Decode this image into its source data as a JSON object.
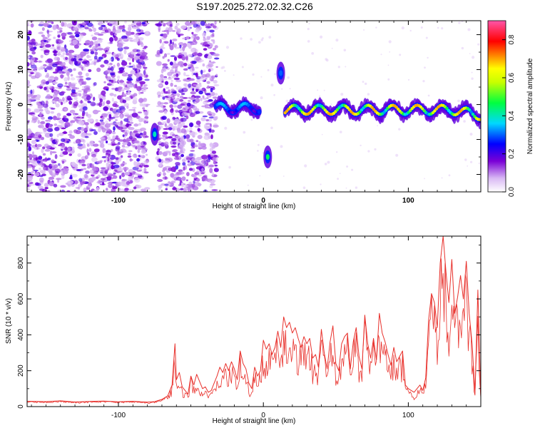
{
  "figure": {
    "title": "S197.2025.272.02.32.C26"
  },
  "chart_data": [
    {
      "type": "heatmap",
      "name": "spectrogram",
      "xlabel": "Height of straight line (km)",
      "ylabel": "Frequency (Hz)",
      "xlim": [
        -163,
        150
      ],
      "ylim": [
        -25,
        24
      ],
      "xticks": [
        -100,
        0,
        100
      ],
      "xtick_labels": [
        "-100",
        "0",
        "100"
      ],
      "yticks": [
        -20,
        -10,
        0,
        10,
        20
      ],
      "ytick_labels": [
        "-20",
        "-10",
        "0",
        "10",
        "20"
      ],
      "colorbar": {
        "label": "Normalized spectral amplitude",
        "range": [
          0.0,
          0.9
        ],
        "ticks": [
          0.0,
          0.2,
          0.4,
          0.6,
          0.8
        ],
        "tick_labels": [
          "0.0",
          "0.2",
          "0.4",
          "0.6",
          "0.8"
        ],
        "colormap": [
          "#ffffff",
          "#7a00d6",
          "#0000ff",
          "#00d8ff",
          "#00ff40",
          "#ffff00",
          "#ff8000",
          "#ff0000",
          "#ff55aa"
        ]
      },
      "noise_regions_km": [
        [
          -163,
          -80
        ],
        [
          -73,
          -32
        ]
      ],
      "signal_track": [
        {
          "x_from": -33,
          "x_to": -2,
          "freq_hz": -1,
          "amp": 0.35
        },
        {
          "x_from": 15,
          "x_to": 150,
          "freq_hz": -1.5,
          "amp": 0.7
        }
      ],
      "signal_blobs": [
        {
          "x": -75,
          "freq_hz": -8.5,
          "amp": 0.4
        },
        {
          "x": 3,
          "freq_hz": -15,
          "amp": 0.45
        },
        {
          "x": 12,
          "freq_hz": 9,
          "amp": 0.3
        }
      ]
    },
    {
      "type": "line",
      "name": "snr",
      "xlabel": "Height of straight line (km)",
      "ylabel": "SNR (10 * v/v)",
      "xlim": [
        -163,
        150
      ],
      "ylim": [
        0,
        950
      ],
      "xticks": [
        -100,
        0,
        100
      ],
      "xtick_labels": [
        "-100",
        "0",
        "100"
      ],
      "yticks": [
        0,
        200,
        400,
        600,
        800
      ],
      "ytick_labels": [
        "0",
        "200",
        "400",
        "600",
        "800"
      ],
      "series": [
        {
          "name": "SNR",
          "color": "#e8302b",
          "x": [
            -163,
            -150,
            -140,
            -130,
            -120,
            -110,
            -100,
            -90,
            -80,
            -75,
            -70,
            -66,
            -63,
            -61,
            -60,
            -58,
            -56,
            -54,
            -52,
            -50,
            -48,
            -46,
            -44,
            -42,
            -40,
            -38,
            -36,
            -34,
            -32,
            -30,
            -28,
            -26,
            -24,
            -22,
            -20,
            -18,
            -16,
            -14,
            -12,
            -10,
            -8,
            -6,
            -4,
            -2,
            0,
            2,
            4,
            6,
            8,
            10,
            12,
            14,
            16,
            18,
            20,
            22,
            24,
            26,
            28,
            30,
            32,
            34,
            36,
            38,
            40,
            42,
            44,
            46,
            48,
            50,
            52,
            54,
            56,
            58,
            60,
            62,
            64,
            66,
            68,
            70,
            72,
            74,
            76,
            78,
            80,
            82,
            84,
            86,
            88,
            90,
            92,
            94,
            96,
            98,
            100,
            102,
            104,
            106,
            108,
            110,
            112,
            114,
            116,
            118,
            120,
            122,
            124,
            126,
            128,
            130,
            132,
            134,
            136,
            138,
            140,
            142,
            144,
            146,
            148,
            150
          ],
          "values": [
            30,
            28,
            32,
            26,
            29,
            31,
            27,
            30,
            25,
            28,
            40,
            60,
            120,
            350,
            150,
            190,
            110,
            90,
            70,
            170,
            120,
            180,
            140,
            100,
            110,
            80,
            90,
            130,
            170,
            220,
            190,
            240,
            200,
            250,
            210,
            150,
            310,
            240,
            210,
            130,
            100,
            220,
            170,
            200,
            370,
            320,
            350,
            290,
            330,
            420,
            330,
            500,
            440,
            470,
            410,
            440,
            380,
            330,
            390,
            350,
            380,
            270,
            290,
            220,
            430,
            300,
            210,
            360,
            450,
            240,
            200,
            350,
            390,
            410,
            210,
            360,
            440,
            280,
            210,
            510,
            350,
            270,
            380,
            260,
            520,
            410,
            360,
            290,
            230,
            330,
            250,
            280,
            310,
            120,
            100,
            90,
            80,
            100,
            120,
            90,
            160,
            480,
            630,
            580,
            440,
            800,
            950,
            750,
            580,
            820,
            520,
            610,
            730,
            600,
            810,
            520,
            350,
            80,
            650,
            50
          ]
        }
      ]
    }
  ]
}
